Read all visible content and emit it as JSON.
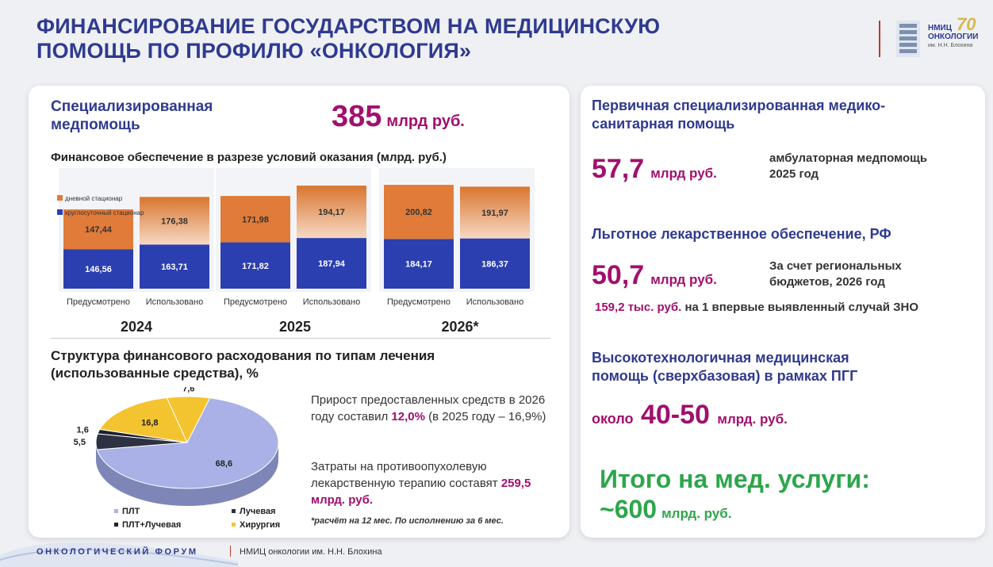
{
  "page": {
    "title_line1": "ФИНАНСИРОВАНИЕ ГОСУДАРСТВОМ НА МЕДИЦИНСКУЮ",
    "title_line2": "ПОМОЩЬ ПО ПРОФИЛЮ «ОНКОЛОГИЯ»"
  },
  "logo": {
    "line1": "НМИЦ",
    "line2": "ОНКОЛОГИИ",
    "line3": "им. Н.Н. Блохина",
    "badge": "70"
  },
  "left": {
    "title_line1": "Специализированная",
    "title_line2": "медпомощь",
    "amount": "385",
    "amount_unit": "млрд руб.",
    "chart_title": "Финансовое обеспечение в разрезе условий оказания (млрд. руб.)",
    "pie_title_line1": "Структура финансового расходования по типам лечения",
    "pie_title_line2": "(использованные средства), %",
    "text1_a": "Прирост предоставленных средств в 2026 году составил ",
    "text1_b": "12,0%",
    "text1_c": " (в 2025 году – 16,9%)",
    "text2_a": "Затраты на противоопухолевую лекарственную терапию составят ",
    "text2_b": "259,5 млрд. руб.",
    "note": "*расчёт на 12 мес. По исполнению за 6 мес."
  },
  "right": {
    "psmp_line1": "Первичная специализированная медико-",
    "psmp_line2": "санитарная помощь",
    "psmp_amount": "57,7",
    "psmp_unit": "млрд руб.",
    "psmp_side_line1": "амбулаторная медпомощь",
    "psmp_side_line2": "2025 год",
    "llo_title": "Льготное лекарственное обеспечение, РФ",
    "llo_amount": "50,7",
    "llo_unit": "млрд руб.",
    "llo_side_line1": "За счет региональных",
    "llo_side_line2": "бюджетов,  2026 год",
    "llo_case_a": "159,2 тыс. руб.",
    "llo_case_b": " на 1 впервые выявленный случай ЗНО",
    "vmp_line1": "Высокотехнологичная медицинская",
    "vmp_line2": "помощь (сверхбазовая) в рамках ПГГ",
    "vmp_prefix": "около",
    "vmp_amount": "40-50",
    "vmp_unit": "млрд. руб.",
    "total_line1": "Итого на мед. услуги:",
    "total_amount": "~600",
    "total_unit": "млрд. руб."
  },
  "footer": {
    "forum": "ОНКОЛОГИЧЕСКИЙ ФОРУМ",
    "org": "НМИЦ онкологии им. Н.Н. Блохина"
  },
  "colors": {
    "orange": "#e07b39",
    "blue": "#2b3fb0",
    "pie_plt": "#a9b1e6",
    "pie_luch": "#2d3142",
    "pie_hir": "#f4c430",
    "accent": "#a0106e",
    "green": "#2da64b"
  },
  "chart_data": [
    {
      "type": "bar",
      "title": "Финансовое обеспечение в разрезе условий оказания (млрд. руб.)",
      "groups": [
        "2024",
        "2025",
        "2026*"
      ],
      "categories": [
        "Предусмотрено",
        "Использовано",
        "Предусмотрено",
        "Использовано",
        "Предусмотрено",
        "Использовано"
      ],
      "series": [
        {
          "name": "круглосуточный стационар",
          "values": [
            146.56,
            163.71,
            171.82,
            187.94,
            184.17,
            186.37
          ]
        },
        {
          "name": "дневной стационар",
          "values": [
            147.44,
            176.38,
            171.98,
            194.17,
            200.82,
            191.97
          ]
        }
      ],
      "labels": {
        "blue": [
          "146,56",
          "163,71",
          "171,82",
          "187,94",
          "184,17",
          "186,37"
        ],
        "orange": [
          "147,44",
          "176,38",
          "171,98",
          "194,17",
          "200,82",
          "191,97"
        ]
      },
      "legend": "top-left",
      "stacked": true
    },
    {
      "type": "pie",
      "title": "Структура финансового расходования по типам лечения (использованные средства), %",
      "slices": [
        {
          "name": "ПЛТ",
          "value": 68.6,
          "label": "68,6"
        },
        {
          "name": "ПЛТ+Лучевая",
          "value": 5.5,
          "label": "5,5"
        },
        {
          "name": "Лучевая",
          "value": 1.6,
          "label": "1,6"
        },
        {
          "name": "Хирургия",
          "value": 16.8,
          "label": "16,8"
        },
        {
          "name": "",
          "value": 7.6,
          "label": "7,6"
        }
      ],
      "legend": "bottom"
    }
  ]
}
